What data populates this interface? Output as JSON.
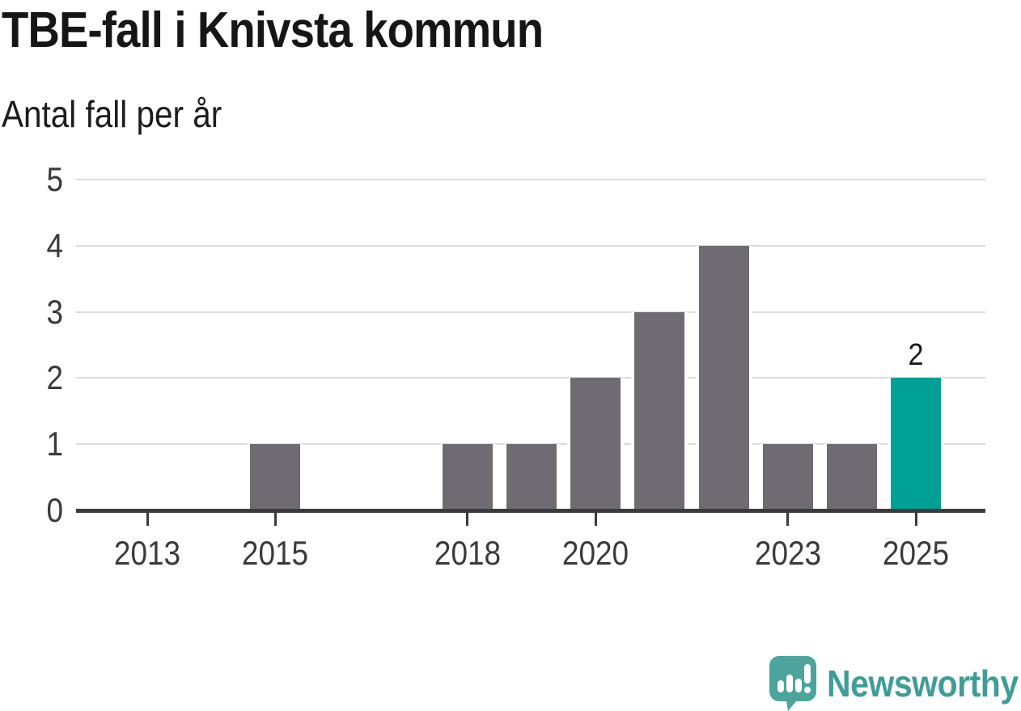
{
  "title": "TBE-fall i Knivsta kommun",
  "subtitle": "Antal fall per år",
  "chart_data": {
    "type": "bar",
    "title": "TBE-fall i Knivsta kommun",
    "subtitle": "Antal fall per år",
    "xlabel": "",
    "ylabel": "Antal fall per år",
    "categories": [
      "2013",
      "2014",
      "2015",
      "2016",
      "2017",
      "2018",
      "2019",
      "2020",
      "2021",
      "2022",
      "2023",
      "2024",
      "2025"
    ],
    "values": [
      0,
      0,
      1,
      0,
      0,
      1,
      1,
      2,
      3,
      4,
      1,
      1,
      2
    ],
    "ylim": [
      0,
      5
    ],
    "y_ticks": [
      0,
      1,
      2,
      3,
      4,
      5
    ],
    "x_tick_labels": [
      "2013",
      "2015",
      "2018",
      "2020",
      "2023",
      "2025"
    ],
    "grid": "horizontal",
    "legend": "none",
    "highlight": {
      "category": "2025",
      "value_label": "2"
    },
    "colors": {
      "bar": "#6e6c72",
      "highlight_bar": "#00a096",
      "gridline": "#dbdbdb",
      "axis": "#3a3a3c",
      "tick_text": "#3a3a3a",
      "title_text": "#161616"
    }
  },
  "branding": {
    "name": "Newsworthy",
    "logo_icon": "newsworthy-speech-bubble-bar-chart-icon",
    "text_color": "#3f9d98",
    "icon_color": "#4ca49d"
  }
}
